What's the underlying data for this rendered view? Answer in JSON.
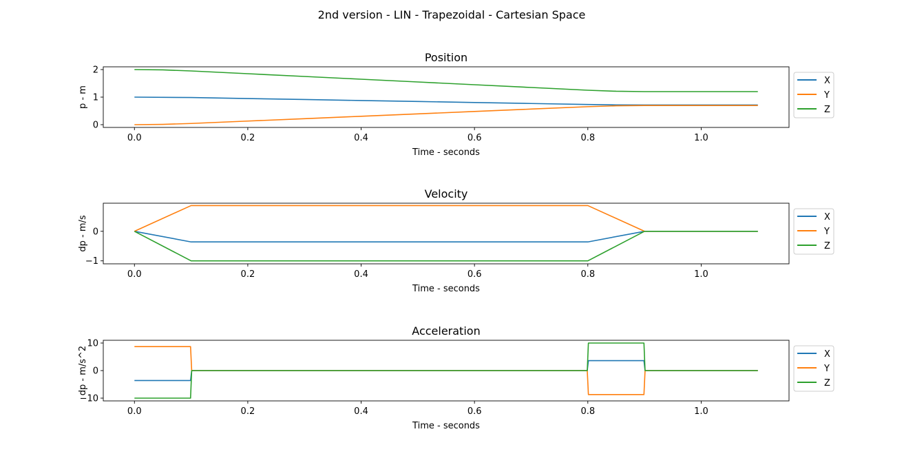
{
  "figure": {
    "suptitle": "2nd version - LIN - Trapezoidal - Cartesian Space"
  },
  "colors": {
    "X": "#1f77b4",
    "Y": "#ff7f0e",
    "Z": "#2ca02c"
  },
  "chart_data": [
    {
      "type": "line",
      "title": "Position",
      "xlabel": "Time - seconds",
      "ylabel": "p - m",
      "xlim": [
        -0.055,
        1.155
      ],
      "ylim": [
        -0.1,
        2.1
      ],
      "xticks": [
        0.0,
        0.2,
        0.4,
        0.6,
        0.8,
        1.0
      ],
      "xtick_labels": [
        "0.0",
        "0.2",
        "0.4",
        "0.6",
        "0.8",
        "1.0"
      ],
      "yticks": [
        0,
        1,
        2
      ],
      "ytick_labels": [
        "0",
        "1",
        "2"
      ],
      "legend": "outside-right",
      "grid": false,
      "series": [
        {
          "name": "X",
          "x": [
            0,
            0.1,
            0.2,
            0.3,
            0.4,
            0.5,
            0.6,
            0.7,
            0.8,
            0.85,
            0.9,
            1.0,
            1.1
          ],
          "y": [
            1.0,
            0.985,
            0.949,
            0.913,
            0.877,
            0.841,
            0.805,
            0.769,
            0.733,
            0.718,
            0.715,
            0.715,
            0.715
          ]
        },
        {
          "name": "Y",
          "x": [
            0,
            0.05,
            0.1,
            0.2,
            0.3,
            0.4,
            0.5,
            0.6,
            0.7,
            0.8,
            0.85,
            0.9,
            1.0,
            1.1
          ],
          "y": [
            0.0,
            0.011,
            0.044,
            0.131,
            0.218,
            0.305,
            0.392,
            0.479,
            0.566,
            0.653,
            0.685,
            0.696,
            0.696,
            0.696
          ]
        },
        {
          "name": "Z",
          "x": [
            0,
            0.05,
            0.1,
            0.2,
            0.3,
            0.4,
            0.5,
            0.6,
            0.7,
            0.8,
            0.85,
            0.9,
            1.0,
            1.1
          ],
          "y": [
            2.0,
            1.988,
            1.95,
            1.85,
            1.75,
            1.65,
            1.55,
            1.45,
            1.35,
            1.25,
            1.213,
            1.2,
            1.2,
            1.2
          ]
        }
      ]
    },
    {
      "type": "line",
      "title": "Velocity",
      "xlabel": "Time - seconds",
      "ylabel": "dp - m/s",
      "xlim": [
        -0.055,
        1.155
      ],
      "ylim": [
        -1.1,
        0.95
      ],
      "xticks": [
        0.0,
        0.2,
        0.4,
        0.6,
        0.8,
        1.0
      ],
      "xtick_labels": [
        "0.0",
        "0.2",
        "0.4",
        "0.6",
        "0.8",
        "1.0"
      ],
      "yticks": [
        -1,
        0
      ],
      "ytick_labels": [
        "−1",
        "0"
      ],
      "legend": "outside-right",
      "grid": false,
      "series": [
        {
          "name": "X",
          "x": [
            0,
            0.1,
            0.8,
            0.9,
            1.1
          ],
          "y": [
            0,
            -0.36,
            -0.36,
            0,
            0
          ]
        },
        {
          "name": "Y",
          "x": [
            0,
            0.1,
            0.8,
            0.9,
            1.1
          ],
          "y": [
            0,
            0.87,
            0.87,
            0,
            0
          ]
        },
        {
          "name": "Z",
          "x": [
            0,
            0.1,
            0.8,
            0.9,
            1.1
          ],
          "y": [
            0,
            -1.0,
            -1.0,
            0,
            0
          ]
        }
      ]
    },
    {
      "type": "line",
      "title": "Acceleration",
      "xlabel": "Time - seconds",
      "ylabel": "dp - m/s^2",
      "xlim": [
        -0.055,
        1.155
      ],
      "ylim": [
        -11,
        11
      ],
      "xticks": [
        0.0,
        0.2,
        0.4,
        0.6,
        0.8,
        1.0
      ],
      "xtick_labels": [
        "0.0",
        "0.2",
        "0.4",
        "0.6",
        "0.8",
        "1.0"
      ],
      "yticks": [
        -10,
        0,
        10
      ],
      "ytick_labels": [
        "−10",
        "0",
        "10"
      ],
      "legend": "outside-right",
      "grid": false,
      "series": [
        {
          "name": "X",
          "x": [
            0,
            0.099,
            0.101,
            0.799,
            0.801,
            0.899,
            0.901,
            1.1
          ],
          "y": [
            -3.6,
            -3.6,
            0,
            0,
            3.6,
            3.6,
            0,
            0
          ]
        },
        {
          "name": "Y",
          "x": [
            0,
            0.099,
            0.101,
            0.799,
            0.801,
            0.899,
            0.901,
            1.1
          ],
          "y": [
            8.7,
            8.7,
            0,
            0,
            -8.7,
            -8.7,
            0,
            0
          ]
        },
        {
          "name": "Z",
          "x": [
            0,
            0.099,
            0.101,
            0.799,
            0.801,
            0.899,
            0.901,
            1.1
          ],
          "y": [
            -10,
            -10,
            0,
            0,
            10,
            10,
            0,
            0
          ]
        }
      ]
    }
  ]
}
